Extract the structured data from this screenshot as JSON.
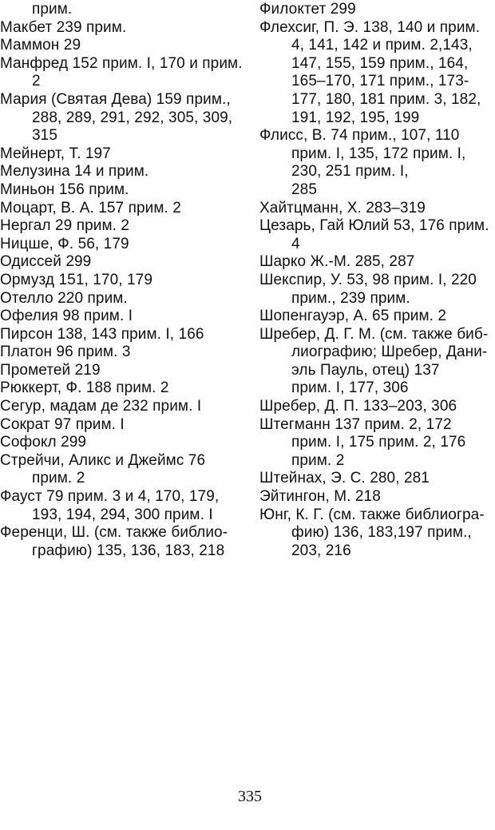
{
  "left_column": [
    {
      "lines": [
        "прим."
      ],
      "continuation_first": true
    },
    {
      "lines": [
        "Макбет 239 прим."
      ]
    },
    {
      "lines": [
        "Маммон 29"
      ]
    },
    {
      "lines": [
        "Манфред 152 прим. I, 170 и прим.",
        "2"
      ]
    },
    {
      "lines": [
        "Мария (Святая Дева) 159 прим.,",
        "288, 289, 291, 292, 305, 309,",
        "315"
      ]
    },
    {
      "lines": [
        "Мейнерт, Т. 197"
      ]
    },
    {
      "lines": [
        "Мелузина 14 и прим."
      ]
    },
    {
      "lines": [
        "Миньон 156 прим."
      ]
    },
    {
      "lines": [
        "Моцарт, В. А. 157 прим. 2"
      ]
    },
    {
      "lines": [
        "Нергал 29 прим. 2"
      ]
    },
    {
      "lines": [
        "Ницше, Ф. 56, 179"
      ]
    },
    {
      "lines": [
        "Одиссей 299"
      ]
    },
    {
      "lines": [
        "Ормузд 151, 170, 179"
      ]
    },
    {
      "lines": [
        "Отелло 220 прим."
      ]
    },
    {
      "lines": [
        "Офелия 98 прим. I"
      ]
    },
    {
      "lines": [
        "Пирсон 138, 143 прим. I, 166"
      ]
    },
    {
      "lines": [
        "Платон 96 прим. 3"
      ]
    },
    {
      "lines": [
        "Прометей 219"
      ]
    },
    {
      "lines": [
        "Рюккерт, Ф. 188 прим. 2"
      ]
    },
    {
      "lines": [
        "Сегур, мадам де 232 прим. I"
      ]
    },
    {
      "lines": [
        "Сократ 97 прим. I"
      ]
    },
    {
      "lines": [
        "Софокл 299"
      ]
    },
    {
      "lines": [
        "Стрейчи, Аликс и Джеймс 76",
        "прим. 2"
      ]
    },
    {
      "lines": [
        "Фауст 79 прим. 3 и 4, 170, 179,",
        "193, 194, 294, 300 прим. I"
      ]
    },
    {
      "lines": [
        "Ференци, Ш. (см. также библио-",
        "графию) 135, 136, 183, 218"
      ]
    }
  ],
  "right_column": [
    {
      "lines": [
        "Филоктет 299"
      ]
    },
    {
      "lines": [
        "Флехсиг, П. Э. 138, 140 и прим.",
        "4, 141, 142 и прим. 2,143,",
        "147, 155, 159 прим., 164,",
        "165–170, 171 прим., 173-",
        "177, 180, 181 прим. 3, 182,",
        "191, 192, 195, 199"
      ]
    },
    {
      "lines": [
        "Флисс, В. 74 прим., 107, 110",
        "прим. I, 135, 172 прим. I,",
        "230, 251 прим. I,",
        "285"
      ]
    },
    {
      "lines": [
        "Хайтцманн, Х. 283–319"
      ]
    },
    {
      "lines": [
        "Цезарь, Гай Юлий 53, 176 прим.",
        "4"
      ]
    },
    {
      "lines": [
        "Шарко Ж.-М. 285, 287"
      ]
    },
    {
      "lines": [
        "Шекспир, У. 53, 98 прим. I, 220",
        "прим., 239 прим."
      ]
    },
    {
      "lines": [
        "Шопенгауэр, А. 65 прим. 2"
      ]
    },
    {
      "lines": [
        "Шребер, Д. Г. М. (см. также биб-",
        "лиографию; Шребер, Дани-",
        "эль Пауль, отец) 137",
        "прим. I, 177, 306"
      ]
    },
    {
      "lines": [
        "Шребер, Д. П. 133–203, 306"
      ]
    },
    {
      "lines": [
        "Штегманн 137 прим. 2, 172",
        "прим. I, 175 прим. 2, 176",
        "прим. 2"
      ]
    },
    {
      "lines": [
        "Штейнах, Э. С. 280, 281"
      ]
    },
    {
      "lines": [
        "Эйтингон, М. 218"
      ]
    },
    {
      "lines": [
        "Юнг, К. Г. (см. также библиогра-",
        "фию) 136, 183,197 прим.,",
        "203, 216"
      ]
    }
  ],
  "page_number": "335"
}
